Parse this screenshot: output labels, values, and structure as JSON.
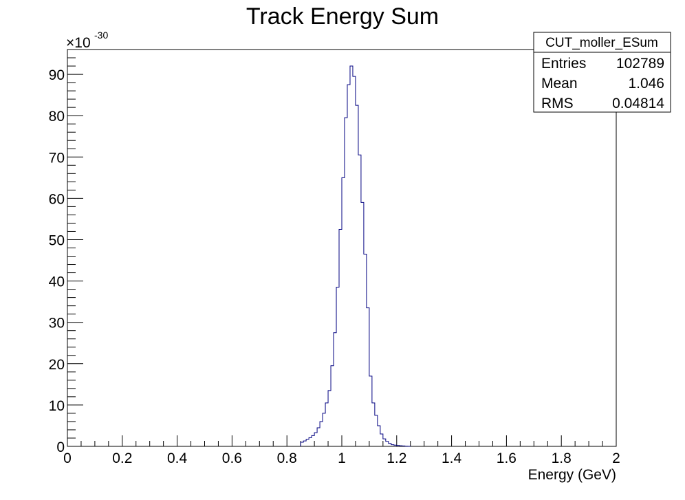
{
  "chart_data": {
    "type": "bar",
    "title": "Track Energy Sum",
    "xlabel": "Energy (GeV)",
    "ylabel": "",
    "y_multiplier": "×10",
    "y_multiplier_exp": "-30",
    "xlim": [
      0,
      2
    ],
    "ylim": [
      0,
      96
    ],
    "bin_width": 0.01,
    "x_ticks": [
      0,
      0.2,
      0.4,
      0.6,
      0.8,
      1,
      1.2,
      1.4,
      1.6,
      1.8,
      2
    ],
    "x_tick_labels": [
      "0",
      "0.2",
      "0.4",
      "0.6",
      "0.8",
      "1",
      "1.2",
      "1.4",
      "1.6",
      "1.8",
      "2"
    ],
    "y_ticks": [
      0,
      10,
      20,
      30,
      40,
      50,
      60,
      70,
      80,
      90
    ],
    "y_tick_labels": [
      "0",
      "10",
      "20",
      "30",
      "40",
      "50",
      "60",
      "70",
      "80",
      "90"
    ],
    "line_color": "#000080",
    "bins": {
      "x_start": [
        0.85,
        0.86,
        0.87,
        0.88,
        0.89,
        0.9,
        0.91,
        0.92,
        0.93,
        0.94,
        0.95,
        0.96,
        0.97,
        0.98,
        0.99,
        1.0,
        1.01,
        1.02,
        1.03,
        1.04,
        1.05,
        1.06,
        1.07,
        1.08,
        1.09,
        1.1,
        1.11,
        1.12,
        1.13,
        1.14,
        1.15,
        1.16,
        1.17,
        1.18,
        1.19,
        1.2,
        1.21,
        1.22,
        1.23,
        1.24
      ],
      "values": [
        1.0,
        1.3,
        1.7,
        2.1,
        2.6,
        3.3,
        4.5,
        6.0,
        8.0,
        10.5,
        13.5,
        19.5,
        27.5,
        38.5,
        52.5,
        65.0,
        79.5,
        87.5,
        92.0,
        89.5,
        82.5,
        70.5,
        59.0,
        46.5,
        33.5,
        17.0,
        10.5,
        7.5,
        5.0,
        3.0,
        1.8,
        1.2,
        0.7,
        0.4,
        0.3,
        0.2,
        0.15,
        0.1,
        0.05,
        0.02
      ]
    },
    "grid": false,
    "legend": "none"
  },
  "stats_box": {
    "name": "CUT_moller_ESum",
    "rows": [
      {
        "label": "Entries",
        "value": "102789"
      },
      {
        "label": "Mean",
        "value": "1.046"
      },
      {
        "label": "RMS",
        "value": "0.04814"
      }
    ]
  }
}
